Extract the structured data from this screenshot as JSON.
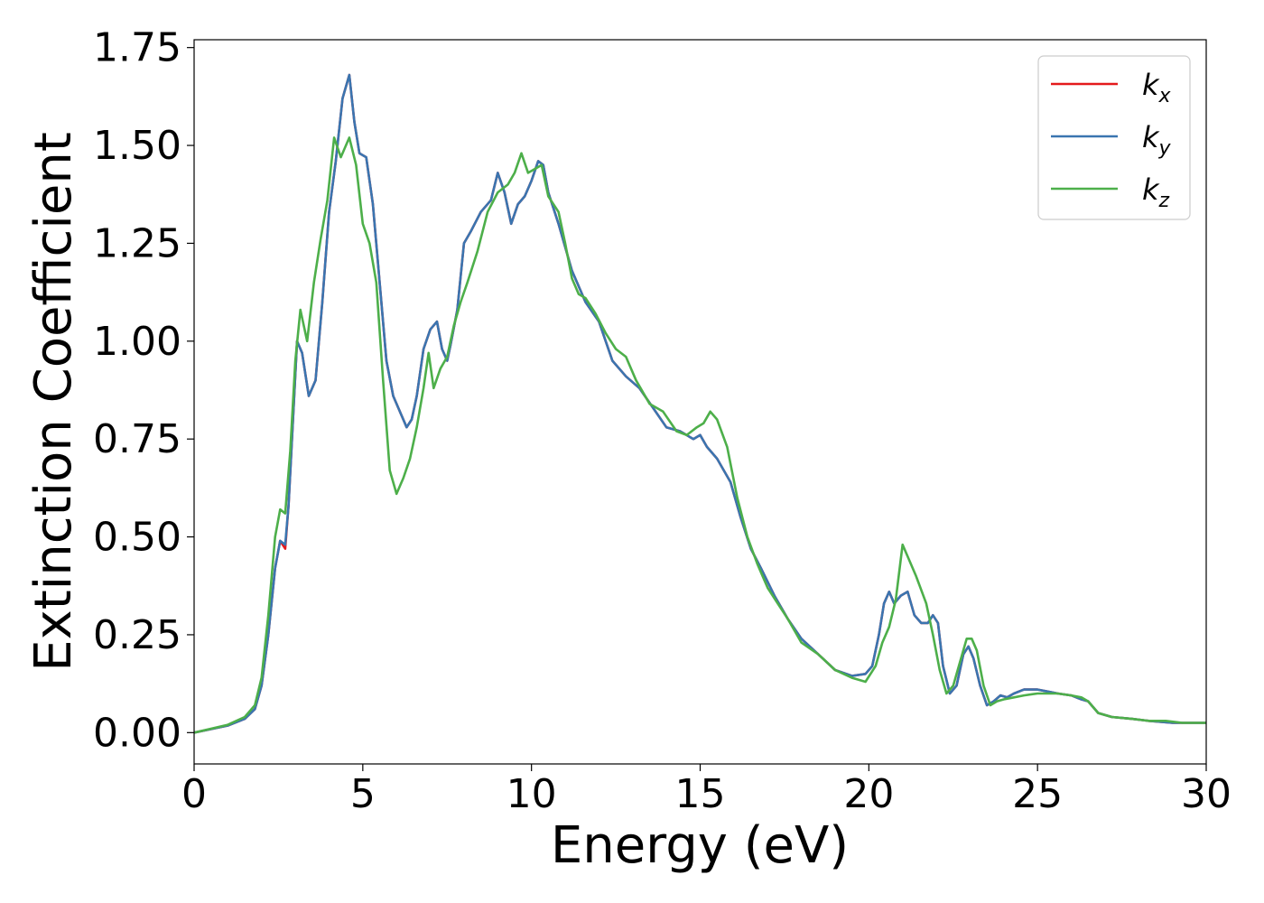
{
  "chart_data": {
    "type": "line",
    "xlabel": "Energy (eV)",
    "ylabel": "Extinction Coefficient",
    "xlim": [
      0,
      30
    ],
    "ylim": [
      -0.08,
      1.77
    ],
    "xticks": [
      0,
      5,
      10,
      15,
      20,
      25,
      30
    ],
    "xtick_labels": [
      "0",
      "5",
      "10",
      "15",
      "20",
      "25",
      "30"
    ],
    "yticks": [
      0.0,
      0.25,
      0.5,
      0.75,
      1.0,
      1.25,
      1.5,
      1.75
    ],
    "ytick_labels": [
      "0.00",
      "0.25",
      "0.50",
      "0.75",
      "1.00",
      "1.25",
      "1.50",
      "1.75"
    ],
    "grid": false,
    "legend_position": "top-right",
    "series": [
      {
        "name": "k_x",
        "legend_base": "k",
        "legend_sub": "x",
        "color": "#e41a1c",
        "x": [
          0,
          1,
          1.5,
          1.8,
          2.0,
          2.2,
          2.4,
          2.55,
          2.7,
          2.8,
          2.9,
          3.05,
          3.2,
          3.4,
          3.6,
          3.8,
          4.0,
          4.2,
          4.4,
          4.6,
          4.75,
          4.9,
          5.1,
          5.3,
          5.5,
          5.7,
          5.9,
          6.1,
          6.3,
          6.45,
          6.6,
          6.8,
          7.0,
          7.2,
          7.35,
          7.5,
          7.6,
          7.8,
          8.0,
          8.2,
          8.5,
          8.8,
          9.0,
          9.2,
          9.4,
          9.6,
          9.8,
          10.0,
          10.2,
          10.35,
          10.5,
          10.8,
          11.2,
          11.6,
          12.0,
          12.4,
          12.8,
          13.2,
          13.6,
          14.0,
          14.4,
          14.8,
          15.0,
          15.2,
          15.5,
          15.9,
          16.2,
          16.5,
          16.8,
          17.2,
          17.6,
          18.0,
          18.5,
          19.0,
          19.5,
          19.9,
          20.1,
          20.3,
          20.45,
          20.6,
          20.75,
          20.95,
          21.15,
          21.35,
          21.55,
          21.75,
          21.9,
          22.05,
          22.2,
          22.4,
          22.6,
          22.8,
          22.95,
          23.1,
          23.3,
          23.5,
          23.7,
          23.9,
          24.1,
          24.3,
          24.6,
          25.0,
          25.3,
          25.6,
          26.0,
          26.3,
          26.5,
          26.8,
          27.2,
          27.8,
          28.3,
          29.0,
          29.5,
          30.0
        ],
        "y": [
          0.0,
          0.018,
          0.035,
          0.06,
          0.12,
          0.25,
          0.42,
          0.49,
          0.47,
          0.58,
          0.75,
          1.0,
          0.97,
          0.86,
          0.9,
          1.1,
          1.33,
          1.46,
          1.62,
          1.68,
          1.56,
          1.48,
          1.47,
          1.35,
          1.15,
          0.95,
          0.86,
          0.82,
          0.78,
          0.8,
          0.86,
          0.98,
          1.03,
          1.05,
          0.98,
          0.95,
          0.99,
          1.08,
          1.25,
          1.28,
          1.33,
          1.36,
          1.43,
          1.38,
          1.3,
          1.35,
          1.37,
          1.41,
          1.46,
          1.45,
          1.38,
          1.3,
          1.18,
          1.1,
          1.05,
          0.95,
          0.91,
          0.88,
          0.83,
          0.78,
          0.77,
          0.75,
          0.76,
          0.73,
          0.7,
          0.64,
          0.55,
          0.47,
          0.42,
          0.35,
          0.29,
          0.24,
          0.2,
          0.16,
          0.145,
          0.15,
          0.17,
          0.25,
          0.33,
          0.36,
          0.33,
          0.35,
          0.36,
          0.3,
          0.28,
          0.28,
          0.3,
          0.28,
          0.17,
          0.1,
          0.12,
          0.2,
          0.22,
          0.19,
          0.12,
          0.07,
          0.08,
          0.095,
          0.09,
          0.1,
          0.11,
          0.11,
          0.105,
          0.1,
          0.095,
          0.085,
          0.08,
          0.05,
          0.04,
          0.035,
          0.03,
          0.025,
          0.025,
          0.025
        ]
      },
      {
        "name": "k_y",
        "legend_base": "k",
        "legend_sub": "y",
        "color": "#3a75b0",
        "x": [
          0,
          1,
          1.5,
          1.8,
          2.0,
          2.2,
          2.4,
          2.55,
          2.7,
          2.8,
          2.9,
          3.05,
          3.2,
          3.4,
          3.6,
          3.8,
          4.0,
          4.2,
          4.4,
          4.6,
          4.75,
          4.9,
          5.1,
          5.3,
          5.5,
          5.7,
          5.9,
          6.1,
          6.3,
          6.45,
          6.6,
          6.8,
          7.0,
          7.2,
          7.35,
          7.5,
          7.6,
          7.8,
          8.0,
          8.2,
          8.5,
          8.8,
          9.0,
          9.2,
          9.4,
          9.6,
          9.8,
          10.0,
          10.2,
          10.35,
          10.5,
          10.8,
          11.2,
          11.6,
          12.0,
          12.4,
          12.8,
          13.2,
          13.6,
          14.0,
          14.4,
          14.8,
          15.0,
          15.2,
          15.5,
          15.9,
          16.2,
          16.5,
          16.8,
          17.2,
          17.6,
          18.0,
          18.5,
          19.0,
          19.5,
          19.9,
          20.1,
          20.3,
          20.45,
          20.6,
          20.75,
          20.95,
          21.15,
          21.35,
          21.55,
          21.75,
          21.9,
          22.05,
          22.2,
          22.4,
          22.6,
          22.8,
          22.95,
          23.1,
          23.3,
          23.5,
          23.7,
          23.9,
          24.1,
          24.3,
          24.6,
          25.0,
          25.3,
          25.6,
          26.0,
          26.3,
          26.5,
          26.8,
          27.2,
          27.8,
          28.3,
          29.0,
          29.5,
          30.0
        ],
        "y": [
          0.0,
          0.018,
          0.035,
          0.06,
          0.12,
          0.25,
          0.42,
          0.49,
          0.48,
          0.58,
          0.75,
          1.0,
          0.97,
          0.86,
          0.9,
          1.1,
          1.33,
          1.46,
          1.62,
          1.68,
          1.56,
          1.48,
          1.47,
          1.35,
          1.15,
          0.95,
          0.86,
          0.82,
          0.78,
          0.8,
          0.86,
          0.98,
          1.03,
          1.05,
          0.98,
          0.95,
          0.99,
          1.08,
          1.25,
          1.28,
          1.33,
          1.36,
          1.43,
          1.38,
          1.3,
          1.35,
          1.37,
          1.41,
          1.46,
          1.45,
          1.38,
          1.3,
          1.18,
          1.1,
          1.05,
          0.95,
          0.91,
          0.88,
          0.83,
          0.78,
          0.77,
          0.75,
          0.76,
          0.73,
          0.7,
          0.64,
          0.55,
          0.47,
          0.42,
          0.35,
          0.29,
          0.24,
          0.2,
          0.16,
          0.145,
          0.15,
          0.17,
          0.25,
          0.33,
          0.36,
          0.33,
          0.35,
          0.36,
          0.3,
          0.28,
          0.28,
          0.3,
          0.28,
          0.17,
          0.1,
          0.12,
          0.2,
          0.22,
          0.19,
          0.12,
          0.07,
          0.08,
          0.095,
          0.09,
          0.1,
          0.11,
          0.11,
          0.105,
          0.1,
          0.095,
          0.085,
          0.08,
          0.05,
          0.04,
          0.035,
          0.03,
          0.025,
          0.025,
          0.025
        ]
      },
      {
        "name": "k_z",
        "legend_base": "k",
        "legend_sub": "z",
        "color": "#4daf4a",
        "x": [
          0,
          1,
          1.5,
          1.8,
          2.0,
          2.2,
          2.4,
          2.55,
          2.7,
          2.85,
          3.0,
          3.15,
          3.35,
          3.55,
          3.75,
          3.95,
          4.15,
          4.35,
          4.6,
          4.8,
          5.0,
          5.2,
          5.4,
          5.6,
          5.8,
          6.0,
          6.2,
          6.4,
          6.6,
          6.8,
          6.95,
          7.1,
          7.3,
          7.5,
          7.7,
          7.9,
          8.1,
          8.4,
          8.7,
          9.0,
          9.3,
          9.5,
          9.7,
          9.9,
          10.1,
          10.3,
          10.5,
          10.8,
          11.0,
          11.2,
          11.4,
          11.6,
          11.9,
          12.2,
          12.5,
          12.8,
          13.1,
          13.5,
          13.9,
          14.3,
          14.6,
          14.9,
          15.1,
          15.3,
          15.5,
          15.8,
          16.1,
          16.4,
          16.7,
          17.0,
          17.3,
          17.6,
          18.0,
          18.5,
          19.0,
          19.5,
          19.9,
          20.2,
          20.4,
          20.6,
          20.8,
          21.0,
          21.2,
          21.4,
          21.7,
          21.9,
          22.1,
          22.3,
          22.5,
          22.7,
          22.9,
          23.05,
          23.2,
          23.4,
          23.6,
          23.8,
          24.0,
          24.3,
          24.6,
          25.0,
          25.3,
          25.6,
          26.0,
          26.3,
          26.5,
          26.8,
          27.2,
          27.8,
          28.3,
          28.8,
          29.3,
          30.0
        ],
        "y": [
          0.0,
          0.02,
          0.04,
          0.07,
          0.14,
          0.3,
          0.5,
          0.57,
          0.56,
          0.72,
          0.95,
          1.08,
          1.0,
          1.15,
          1.26,
          1.36,
          1.52,
          1.47,
          1.52,
          1.45,
          1.3,
          1.25,
          1.15,
          0.9,
          0.67,
          0.61,
          0.65,
          0.7,
          0.78,
          0.88,
          0.97,
          0.88,
          0.93,
          0.96,
          1.04,
          1.1,
          1.15,
          1.23,
          1.33,
          1.38,
          1.4,
          1.43,
          1.48,
          1.43,
          1.44,
          1.45,
          1.37,
          1.33,
          1.25,
          1.16,
          1.12,
          1.11,
          1.07,
          1.02,
          0.98,
          0.96,
          0.9,
          0.84,
          0.82,
          0.77,
          0.76,
          0.78,
          0.79,
          0.82,
          0.8,
          0.73,
          0.6,
          0.5,
          0.43,
          0.37,
          0.33,
          0.29,
          0.23,
          0.2,
          0.16,
          0.14,
          0.13,
          0.17,
          0.23,
          0.27,
          0.34,
          0.48,
          0.44,
          0.4,
          0.33,
          0.25,
          0.16,
          0.1,
          0.12,
          0.18,
          0.24,
          0.24,
          0.21,
          0.12,
          0.07,
          0.08,
          0.085,
          0.09,
          0.095,
          0.1,
          0.1,
          0.1,
          0.095,
          0.09,
          0.08,
          0.05,
          0.04,
          0.035,
          0.03,
          0.03,
          0.025,
          0.025
        ]
      }
    ]
  }
}
